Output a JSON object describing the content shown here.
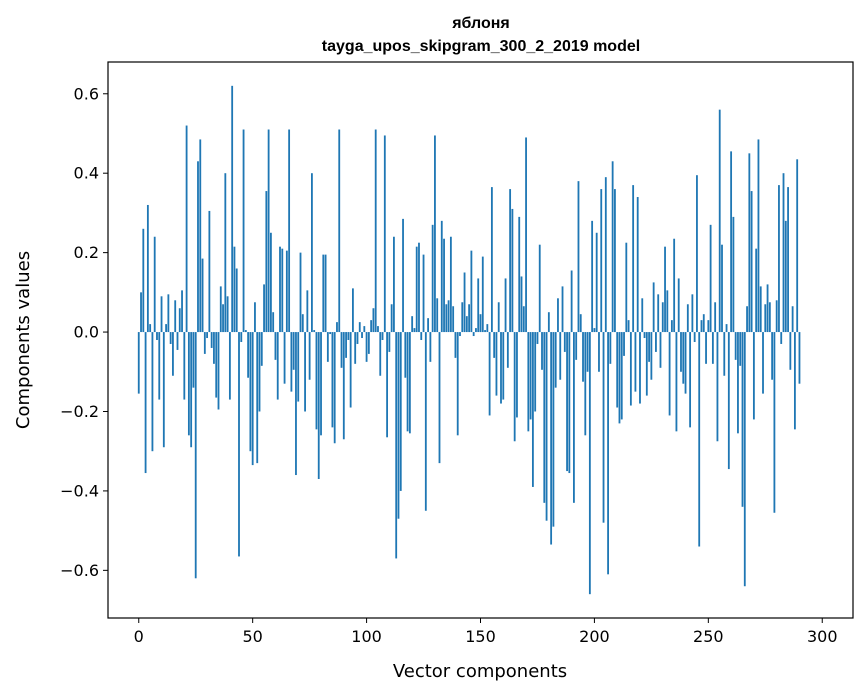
{
  "chart_data": {
    "type": "bar",
    "title": "яблоня",
    "subtitle": "tayga_upos_skipgram_300_2_2019 model",
    "xlabel": "Vector components",
    "ylabel": "Components values",
    "xlim": [
      -13.5,
      313.5
    ],
    "ylim": [
      -0.72,
      0.68
    ],
    "xticks": [
      0,
      50,
      100,
      150,
      200,
      250,
      300
    ],
    "xtick_labels": [
      "0",
      "50",
      "100",
      "150",
      "200",
      "250",
      "300"
    ],
    "yticks": [
      -0.6,
      -0.4,
      -0.2,
      0.0,
      0.2,
      0.4,
      0.6
    ],
    "ytick_labels": [
      "−0.6",
      "−0.4",
      "−0.2",
      "0.0",
      "0.2",
      "0.4",
      "0.6"
    ],
    "bar_color": "#1f77b4",
    "grid": false,
    "values": [
      -0.155,
      0.1,
      0.26,
      -0.355,
      0.32,
      0.02,
      -0.3,
      0.24,
      -0.02,
      -0.17,
      0.09,
      -0.29,
      0.02,
      0.095,
      -0.03,
      -0.11,
      0.08,
      -0.045,
      0.06,
      0.105,
      -0.17,
      0.52,
      -0.26,
      -0.29,
      -0.14,
      -0.62,
      0.43,
      0.485,
      0.185,
      -0.055,
      -0.015,
      0.305,
      -0.04,
      -0.08,
      -0.165,
      -0.195,
      0.115,
      0.07,
      0.4,
      0.09,
      -0.17,
      0.62,
      0.215,
      0.16,
      -0.565,
      -0.025,
      0.51,
      0.005,
      -0.115,
      -0.3,
      -0.335,
      0.075,
      -0.33,
      -0.2,
      -0.085,
      0.12,
      0.355,
      0.51,
      0.25,
      0.05,
      -0.07,
      -0.17,
      0.215,
      0.21,
      -0.13,
      0.205,
      0.51,
      -0.15,
      -0.095,
      -0.36,
      -0.175,
      0.2,
      0.045,
      -0.2,
      0.105,
      -0.12,
      0.4,
      0.005,
      -0.245,
      -0.37,
      -0.26,
      0.195,
      0.195,
      -0.075,
      -0.005,
      -0.24,
      -0.28,
      0.025,
      0.51,
      -0.09,
      -0.27,
      -0.065,
      -0.02,
      -0.19,
      0.11,
      -0.08,
      -0.03,
      0.025,
      -0.015,
      0.015,
      -0.075,
      -0.055,
      0.03,
      0.06,
      0.51,
      0.015,
      -0.11,
      -0.02,
      0.495,
      -0.265,
      -0.05,
      0.07,
      0.24,
      -0.57,
      -0.47,
      -0.4,
      0.285,
      -0.115,
      -0.25,
      -0.255,
      0.04,
      0.01,
      0.215,
      0.225,
      -0.02,
      0.195,
      -0.45,
      0.035,
      -0.075,
      0.27,
      0.495,
      0.085,
      -0.33,
      0.28,
      0.235,
      0.07,
      0.08,
      0.24,
      0.065,
      -0.065,
      -0.26,
      -0.01,
      0.075,
      0.15,
      0.04,
      0.07,
      0.205,
      -0.01,
      0.01,
      0.135,
      0.045,
      0.19,
      0.005,
      0.02,
      -0.21,
      0.365,
      -0.065,
      -0.16,
      0.075,
      -0.18,
      -0.17,
      0.135,
      -0.09,
      0.36,
      0.31,
      -0.275,
      -0.215,
      0.29,
      0.14,
      0.065,
      0.49,
      -0.25,
      -0.22,
      -0.39,
      -0.2,
      -0.03,
      0.22,
      -0.095,
      -0.43,
      -0.475,
      0.05,
      -0.535,
      -0.49,
      -0.14,
      0.085,
      -0.12,
      0.115,
      -0.05,
      -0.35,
      -0.355,
      0.155,
      -0.43,
      -0.07,
      0.38,
      0.045,
      -0.125,
      -0.26,
      -0.1,
      -0.66,
      0.28,
      0.01,
      0.25,
      -0.1,
      0.36,
      -0.48,
      0.39,
      -0.61,
      -0.08,
      0.43,
      0.36,
      -0.19,
      -0.23,
      -0.22,
      -0.06,
      0.225,
      0.03,
      -0.185,
      0.37,
      -0.15,
      0.34,
      -0.18,
      0.085,
      -0.015,
      -0.16,
      -0.075,
      -0.12,
      0.125,
      -0.05,
      0.095,
      -0.09,
      0.075,
      0.215,
      0.105,
      -0.21,
      0.03,
      0.235,
      -0.25,
      0.135,
      -0.1,
      -0.13,
      -0.155,
      0.07,
      -0.24,
      0.095,
      -0.025,
      0.395,
      -0.54,
      0.03,
      0.045,
      -0.08,
      0.03,
      0.27,
      -0.08,
      0.075,
      -0.275,
      0.56,
      0.22,
      -0.11,
      0.02,
      -0.345,
      0.455,
      0.29,
      -0.07,
      -0.255,
      -0.085,
      -0.44,
      -0.64,
      0.065,
      0.45,
      0.355,
      -0.22,
      0.21,
      0.485,
      0.115,
      -0.155,
      0.07,
      0.12,
      0.075,
      -0.12,
      -0.455,
      0.08,
      0.37,
      -0.03,
      0.4,
      0.28,
      0.365,
      -0.095,
      0.065,
      -0.245,
      0.435,
      -0.13
    ]
  }
}
